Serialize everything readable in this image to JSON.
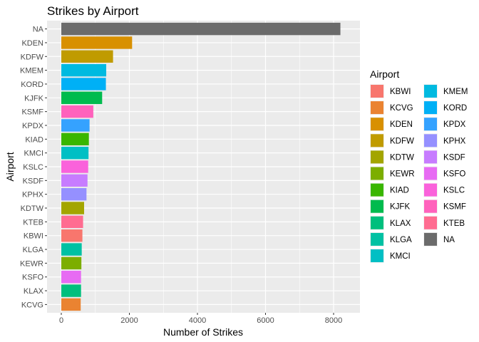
{
  "chart_data": {
    "type": "bar",
    "orientation": "horizontal",
    "title": "Strikes by Airport",
    "xlabel": "Number of Strikes",
    "ylabel": "Airport",
    "xlim": [
      0,
      8200
    ],
    "xticks": [
      0,
      2000,
      4000,
      6000,
      8000
    ],
    "grid": true,
    "legend": {
      "title": "Airport",
      "placement": "right",
      "columns": [
        [
          "KBWI",
          "KCVG",
          "KDEN",
          "KDFW",
          "KDTW",
          "KEWR",
          "KIAD",
          "KJFK",
          "KLAX",
          "KLGA",
          "KMCI"
        ],
        [
          "KMEM",
          "KORD",
          "KPDX",
          "KPHX",
          "KSDF",
          "KSFO",
          "KSLC",
          "KSMF",
          "KTEB",
          "NA"
        ]
      ]
    },
    "colors": {
      "KBWI": "#F8766D",
      "KCVG": "#EA8331",
      "KDEN": "#D89000",
      "KDFW": "#C09B00",
      "KDTW": "#A3A500",
      "KEWR": "#7CAE00",
      "KIAD": "#39B600",
      "KJFK": "#00BB4E",
      "KLAX": "#00BF7D",
      "KLGA": "#00C1A3",
      "KMCI": "#00BFC4",
      "KMEM": "#00BAE0",
      "KORD": "#00B0F6",
      "KPDX": "#35A2FF",
      "KPHX": "#9590FF",
      "KSDF": "#C77CFF",
      "KSFO": "#E76BF3",
      "KSLC": "#FA62DB",
      "KSMF": "#FF62BC",
      "KTEB": "#FF6C91",
      "NA": "#6B6B6B"
    },
    "categories": [
      "NA",
      "KDEN",
      "KDFW",
      "KMEM",
      "KORD",
      "KJFK",
      "KSMF",
      "KPDX",
      "KIAD",
      "KMCI",
      "KSLC",
      "KSDF",
      "KPHX",
      "KDTW",
      "KTEB",
      "KBWI",
      "KLGA",
      "KEWR",
      "KSFO",
      "KLAX",
      "KCVG"
    ],
    "values": [
      8200,
      2080,
      1520,
      1320,
      1310,
      1200,
      940,
      830,
      810,
      800,
      790,
      770,
      740,
      670,
      640,
      620,
      600,
      590,
      580,
      580,
      570
    ]
  }
}
